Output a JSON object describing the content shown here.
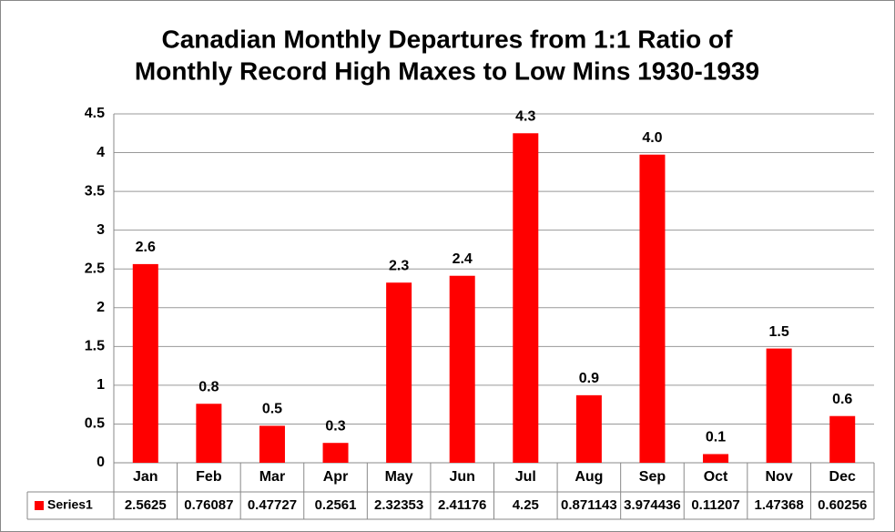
{
  "chart_data": {
    "type": "bar",
    "title": [
      "Canadian Monthly Departures from 1:1 Ratio of",
      "Monthly Record High Maxes to Low Mins 1930-1939"
    ],
    "categories": [
      "Jan",
      "Feb",
      "Mar",
      "Apr",
      "May",
      "Jun",
      "Jul",
      "Aug",
      "Sep",
      "Oct",
      "Nov",
      "Dec"
    ],
    "series": [
      {
        "name": "Series1",
        "color": "#ff0000",
        "values": [
          2.5625,
          0.76087,
          0.47727,
          0.2561,
          2.32353,
          2.41176,
          4.25,
          0.871143,
          3.974436,
          0.11207,
          1.47368,
          0.60256
        ],
        "value_labels": [
          "2.6",
          "0.8",
          "0.5",
          "0.3",
          "2.3",
          "2.4",
          "4.3",
          "0.9",
          "4.0",
          "0.1",
          "1.5",
          "0.6"
        ]
      }
    ],
    "ylim": [
      0,
      4.5
    ],
    "yticks": [
      0,
      0.5,
      1,
      1.5,
      2,
      2.5,
      3,
      3.5,
      4,
      4.5
    ],
    "grid": true,
    "data_table": true
  }
}
